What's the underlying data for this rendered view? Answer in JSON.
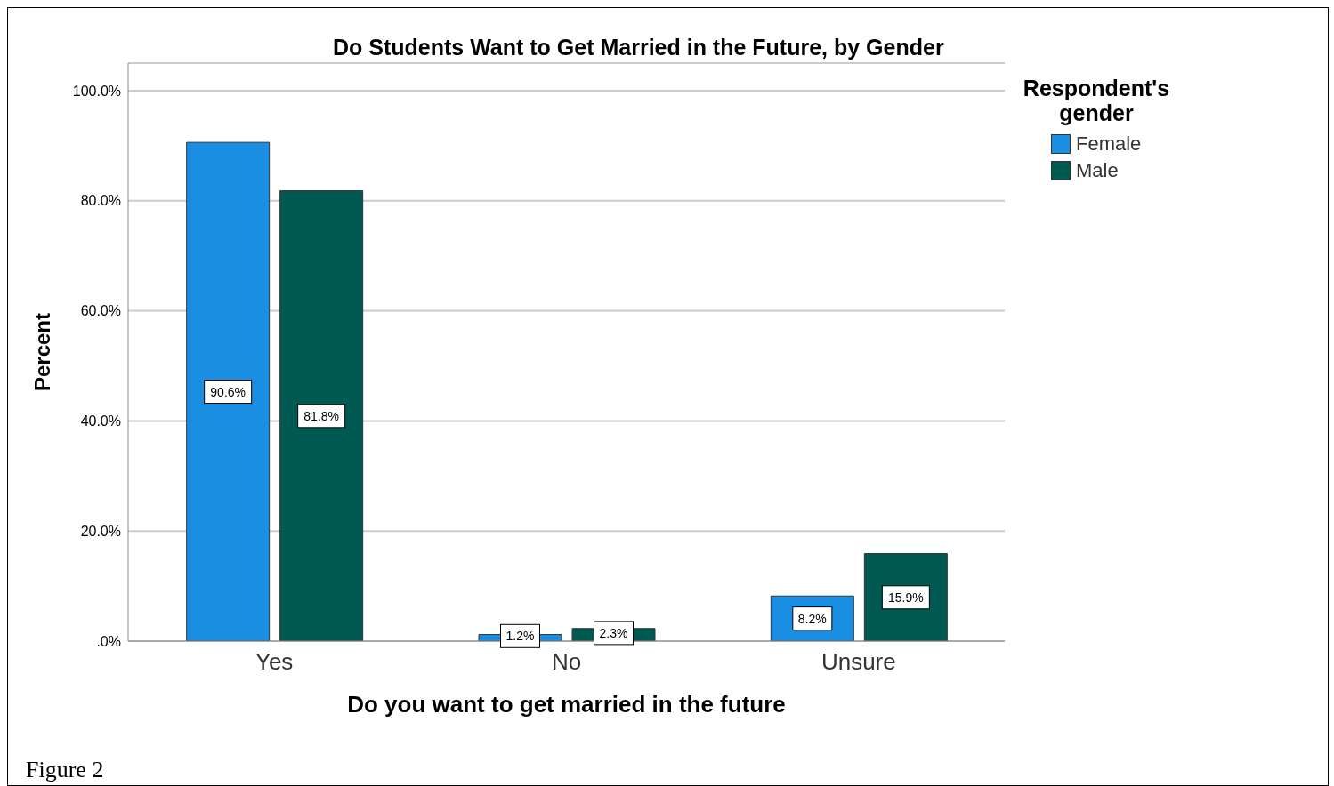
{
  "chart_data": {
    "type": "bar",
    "title": "Do Students Want to Get Married in the Future, by Gender",
    "xlabel": "Do you want to get married in the future",
    "ylabel": "Percent",
    "legend_title": "Respondent's gender",
    "categories": [
      "Yes",
      "No",
      "Unsure"
    ],
    "series": [
      {
        "name": "Female",
        "color": "#1a8ee3",
        "values": [
          90.6,
          1.2,
          8.2
        ],
        "value_labels": [
          "90.6%",
          "1.2%",
          "8.2%"
        ]
      },
      {
        "name": "Male",
        "color": "#005a52",
        "values": [
          81.8,
          2.3,
          15.9
        ],
        "value_labels": [
          "81.8%",
          "2.3%",
          "15.9%"
        ]
      }
    ],
    "ylim": [
      0,
      105
    ],
    "yticks": [
      {
        "value": 0,
        "label": ".0%"
      },
      {
        "value": 20,
        "label": "20.0%"
      },
      {
        "value": 40,
        "label": "40.0%"
      },
      {
        "value": 60,
        "label": "60.0%"
      },
      {
        "value": 80,
        "label": "80.0%"
      },
      {
        "value": 100,
        "label": "100.0%"
      }
    ],
    "grid": "y",
    "legend": "top right",
    "annotations": [
      "Figure 2"
    ]
  }
}
